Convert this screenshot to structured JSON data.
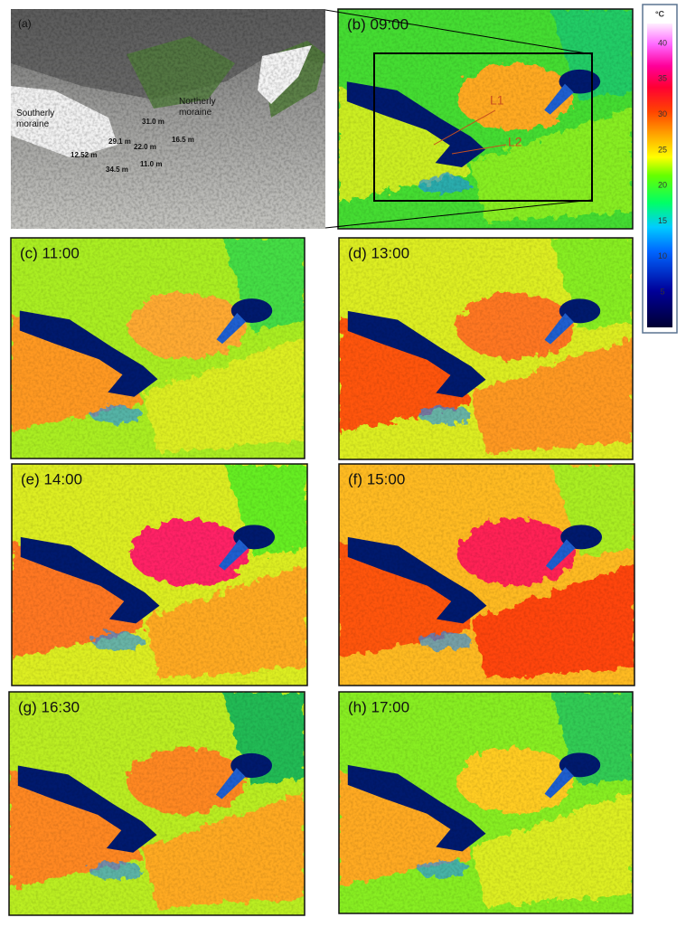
{
  "panels": [
    {
      "label": "(a)"
    },
    {
      "label": "(b) 09:00"
    },
    {
      "label": "(c) 11:00"
    },
    {
      "label": "(d) 13:00"
    },
    {
      "label": "(e)  14:00"
    },
    {
      "label": "(f)  15:00"
    },
    {
      "label": "(g)  16:30"
    },
    {
      "label": "(h) 17:00"
    }
  ],
  "photo_annotations": {
    "southerly": "Southerly moraine",
    "northerly": "Northerly moraine",
    "distances": [
      "31.0 m",
      "29.1 m",
      "22.0 m",
      "16.5 m",
      "12.52 m",
      "11.0 m",
      "34.5 m"
    ]
  },
  "lines": [
    "L1",
    "L2"
  ],
  "colorbar": {
    "unit": "°C",
    "ticks": [
      40,
      35,
      30,
      25,
      20,
      15,
      10,
      5
    ]
  }
}
